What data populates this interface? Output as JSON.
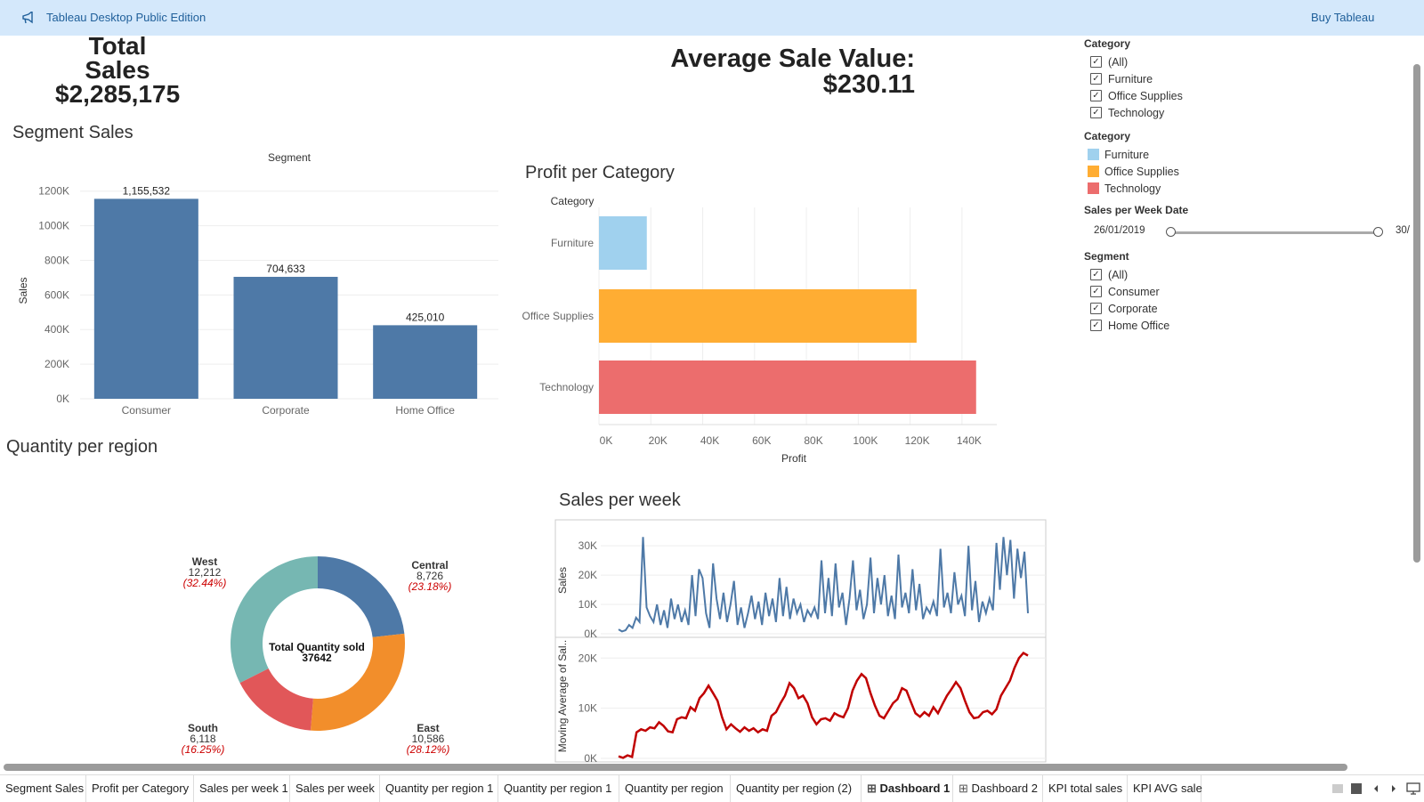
{
  "app": {
    "title": "Tableau Desktop Public Edition",
    "buy": "Buy Tableau"
  },
  "kpi": {
    "total_sales_label": "Total Sales",
    "total_sales_value": "$2,285,175",
    "avg_label": "Average Sale Value:",
    "avg_value": "$230.11"
  },
  "segment_sales": {
    "title": "Segment Sales",
    "chart_data": {
      "type": "bar",
      "title": "Segment",
      "categories": [
        "Consumer",
        "Corporate",
        "Home Office"
      ],
      "values": [
        1155532,
        704633,
        425010
      ],
      "value_labels": [
        "1,155,532",
        "704,633",
        "425,010"
      ],
      "ylabel": "Sales",
      "ylim": [
        0,
        1250000
      ],
      "yticks": [
        0,
        200000,
        400000,
        600000,
        800000,
        1000000,
        1200000
      ],
      "ytick_labels": [
        "0K",
        "200K",
        "400K",
        "600K",
        "800K",
        "1000K",
        "1200K"
      ],
      "color": "#4e79a7",
      "grid": true
    }
  },
  "profit_category": {
    "title": "Profit per Category",
    "chart_data": {
      "type": "bar",
      "orientation": "horizontal",
      "axis_header": "Category",
      "categories": [
        "Furniture",
        "Office Supplies",
        "Technology"
      ],
      "values": [
        18451,
        122491,
        145455
      ],
      "colors": [
        "#a0d1ee",
        "#ffad33",
        "#ec6d6d"
      ],
      "xlabel": "Profit",
      "xlim": [
        0,
        150000
      ],
      "xticks": [
        0,
        20000,
        40000,
        60000,
        80000,
        100000,
        120000,
        140000
      ],
      "xtick_labels": [
        "0K",
        "20K",
        "40K",
        "60K",
        "80K",
        "100K",
        "120K",
        "140K"
      ],
      "grid": true
    }
  },
  "quantity_region": {
    "title": "Quantity per region",
    "center_label": "Total Quantity sold",
    "center_value": "37642",
    "chart_data": {
      "type": "pie",
      "donut": true,
      "slices": [
        {
          "label": "Central",
          "value": 8726,
          "value_text": "8,726",
          "pct": "(23.18%)",
          "color": "#4e79a7"
        },
        {
          "label": "East",
          "value": 10586,
          "value_text": "10,586",
          "pct": "(28.12%)",
          "color": "#f28e2b"
        },
        {
          "label": "South",
          "value": 6118,
          "value_text": "6,118",
          "pct": "(16.25%)",
          "color": "#e15759"
        },
        {
          "label": "West",
          "value": 12212,
          "value_text": "12,212",
          "pct": "(32.44%)",
          "color": "#76b7b2"
        }
      ]
    }
  },
  "sales_week": {
    "title": "Sales per week",
    "chart_data": [
      {
        "type": "line",
        "ylabel": "Sales",
        "ylim": [
          0,
          34000
        ],
        "yticks": [
          0,
          10000,
          20000,
          30000
        ],
        "ytick_labels": [
          "0K",
          "10K",
          "20K",
          "30K"
        ],
        "color": "#4e79a7",
        "values": [
          1500,
          800,
          1200,
          3000,
          2000,
          5500,
          4000,
          33000,
          9000,
          6000,
          4000,
          10000,
          3000,
          8000,
          2000,
          12000,
          5000,
          10000,
          4000,
          8000,
          3000,
          20000,
          6000,
          22000,
          19000,
          7000,
          2000,
          24000,
          12000,
          5000,
          14000,
          4000,
          10000,
          18000,
          3000,
          9000,
          2000,
          7000,
          13000,
          5000,
          11000,
          3000,
          14000,
          6000,
          12000,
          4000,
          19000,
          6000,
          16000,
          5000,
          12000,
          7000,
          10000,
          4000,
          8000,
          6000,
          9000,
          5000,
          25000,
          7000,
          19000,
          6000,
          24000,
          9000,
          14000,
          3000,
          12000,
          25000,
          8000,
          15000,
          5000,
          10000,
          26000,
          7000,
          19000,
          10000,
          20000,
          6000,
          13000,
          5000,
          27000,
          9000,
          14000,
          7000,
          22000,
          8000,
          17000,
          5000,
          9000,
          7000,
          11000,
          6000,
          29000,
          9000,
          14000,
          7000,
          21000,
          10000,
          13000,
          6000,
          30000,
          8000,
          18000,
          4000,
          11000,
          7000,
          12000,
          8000,
          31000,
          15000,
          33000,
          20000,
          32000,
          12000,
          29000,
          19000,
          28000,
          7000
        ]
      },
      {
        "type": "line",
        "ylabel": "Moving Average of Sal..",
        "ylim": [
          0,
          22000
        ],
        "yticks": [
          0,
          10000,
          20000
        ],
        "ytick_labels": [
          "0K",
          "10K",
          "20K"
        ],
        "color": "#c00000",
        "values": [
          400,
          100,
          600,
          300,
          5200,
          5800,
          5500,
          6200,
          6000,
          7200,
          6500,
          5400,
          5200,
          7800,
          8200,
          8000,
          10200,
          9500,
          12000,
          13000,
          14500,
          13000,
          11500,
          8200,
          5800,
          6800,
          6000,
          5300,
          6200,
          5500,
          6000,
          5200,
          5800,
          5500,
          8500,
          9200,
          11000,
          12500,
          15000,
          14000,
          12000,
          12500,
          11000,
          8200,
          6800,
          7800,
          8000,
          7500,
          9000,
          8500,
          8200,
          10000,
          13500,
          15500,
          16800,
          16000,
          13000,
          10500,
          8500,
          8000,
          9500,
          11000,
          11800,
          14000,
          13500,
          11200,
          9000,
          8300,
          9200,
          8500,
          10200,
          9000,
          10800,
          12500,
          13800,
          15200,
          14000,
          11500,
          9200,
          8000,
          8200,
          9200,
          9500,
          8800,
          9800,
          12500,
          14000,
          15500,
          18000,
          20000,
          21000,
          20500
        ]
      }
    ]
  },
  "filters": {
    "category_filter": {
      "title": "Category",
      "items": [
        "(All)",
        "Furniture",
        "Office Supplies",
        "Technology"
      ]
    },
    "category_legend": {
      "title": "Category",
      "items": [
        {
          "label": "Furniture",
          "color": "#a0d1ee"
        },
        {
          "label": "Office Supplies",
          "color": "#ffad33"
        },
        {
          "label": "Technology",
          "color": "#ec6d6d"
        }
      ]
    },
    "date_filter": {
      "title": "Sales per Week Date",
      "start": "26/01/2019",
      "end": "30/"
    },
    "segment_filter": {
      "title": "Segment",
      "items": [
        "(All)",
        "Consumer",
        "Corporate",
        "Home Office"
      ]
    }
  },
  "tabs": [
    {
      "label": "Segment Sales",
      "icon": "",
      "active": false
    },
    {
      "label": "Profit per Category",
      "icon": "",
      "active": false
    },
    {
      "label": "Sales per week 1",
      "icon": "",
      "active": false
    },
    {
      "label": "Sales per week",
      "icon": "",
      "active": false
    },
    {
      "label": "Quantity per region 1",
      "icon": "",
      "active": false
    },
    {
      "label": "Quantity per region 1",
      "icon": "",
      "active": false
    },
    {
      "label": "Quantity per region",
      "icon": "",
      "active": false
    },
    {
      "label": "Quantity per region (2)",
      "icon": "",
      "active": false
    },
    {
      "label": "Dashboard 1",
      "icon": "dashboard-icon",
      "active": true
    },
    {
      "label": "Dashboard 2",
      "icon": "dashboard-icon",
      "active": false
    },
    {
      "label": "KPI total sales",
      "icon": "",
      "active": false
    },
    {
      "label": "KPI AVG sale",
      "icon": "",
      "active": false
    }
  ]
}
